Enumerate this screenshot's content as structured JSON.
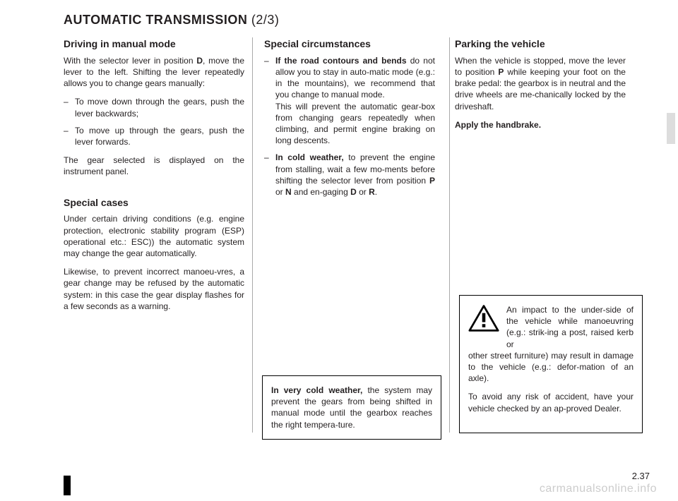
{
  "title_main": "AUTOMATIC TRANSMISSION ",
  "title_part": "(2/3)",
  "col1": {
    "h1": "Driving in manual mode",
    "p1a": "With the selector lever in position ",
    "p1b": "D",
    "p1c": ", move the lever to the left. Shifting the lever repeatedly allows you to change gears manually:",
    "li1": "To move down through the gears, push the lever backwards;",
    "li2": "To move up through the gears, push the lever forwards.",
    "p2": "The gear selected is displayed on the instrument panel.",
    "h2": "Special cases",
    "p3": "Under certain driving conditions (e.g. engine protection, electronic stability program (ESP) operational etc.: ESC)) the automatic system may change the gear automatically.",
    "p4": "Likewise, to prevent incorrect manoeu-vres, a gear change may be refused by the automatic system: in this case the gear display flashes for a few seconds as a warning."
  },
  "col2": {
    "h1": "Special circumstances",
    "li1a": "If the road contours and bends",
    "li1b": " do not allow you to stay in auto-matic mode (e.g.: in the mountains), we recommend that you change to manual mode.",
    "li1c": "This will prevent the automatic gear-box from changing gears repeatedly when climbing, and permit engine braking on long descents.",
    "li2a": "In cold weather,",
    "li2b": " to prevent the engine from stalling, wait a few mo-ments before shifting the selector lever from position ",
    "li2c": "P",
    "li2d": " or ",
    "li2e": "N",
    "li2f": " and en-gaging ",
    "li2g": "D",
    "li2h": " or ",
    "li2i": "R",
    "li2j": "."
  },
  "coldbox": {
    "a": "In very cold weather,",
    "b": " the system may prevent the gears from being shifted in manual mode until the gearbox reaches the right tempera-ture."
  },
  "col3": {
    "h1": "Parking the vehicle",
    "p1a": "When the vehicle is stopped, move the lever to position ",
    "p1b": "P",
    "p1c": " while keeping your foot on the brake pedal: the gearbox is in neutral and the drive wheels are me-chanically locked by the driveshaft.",
    "p2": "Apply the handbrake."
  },
  "warnbox": {
    "p1": "An impact to the under-side of the vehicle while manoeuvring (e.g.: strik-ing a post, raised kerb or other street furniture) may result in damage to the vehicle (e.g.: defor-mation of an axle).",
    "p2": "To avoid any risk of accident, have your vehicle checked by an ap-proved Dealer."
  },
  "page_number": "2.37",
  "watermark": "carmanualsonline.info"
}
